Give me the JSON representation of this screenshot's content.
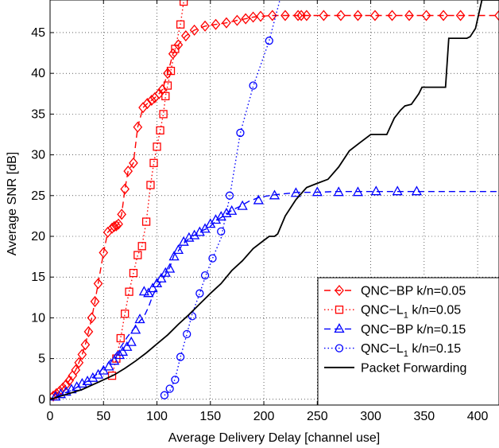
{
  "chart_data": {
    "type": "line",
    "title": "",
    "xlabel": "Average Delivery Delay [channel use]",
    "ylabel": "Average SNR [dB]",
    "xlim": [
      0,
      420
    ],
    "ylim": [
      -0.7,
      49
    ],
    "xticks": [
      0,
      50,
      100,
      150,
      200,
      250,
      300,
      350,
      400
    ],
    "yticks": [
      0,
      5,
      10,
      15,
      20,
      25,
      30,
      35,
      40,
      45
    ],
    "grid": true,
    "legend_position": "bottom-right",
    "series": [
      {
        "name": "QNC−BP k/n=0.05",
        "legend_main": "QNC−BP k/n=0.05",
        "legend_sub": "",
        "legend_tail": "",
        "color": "#ff0000",
        "line_style": "dashed",
        "marker": "diamond",
        "marker_every": 1,
        "x": [
          3,
          6,
          9,
          12,
          15,
          18,
          21,
          24,
          27,
          30,
          33,
          36,
          39,
          42,
          45,
          50,
          54,
          58,
          60,
          62,
          64,
          67,
          70,
          73,
          78,
          82,
          87,
          91,
          95,
          98,
          102,
          105,
          110,
          115,
          120,
          127,
          135,
          145,
          155,
          165,
          175,
          183,
          190,
          197,
          208,
          220,
          232,
          235,
          240,
          256,
          272,
          288,
          304,
          320,
          336,
          352,
          368,
          384,
          420
        ],
        "y": [
          0.4,
          0.7,
          1.0,
          1.4,
          1.8,
          2.3,
          2.9,
          3.6,
          4.5,
          5.5,
          6.7,
          8.3,
          10.0,
          12.0,
          14.2,
          18.0,
          20.5,
          21.0,
          21.2,
          21.3,
          21.5,
          22.7,
          25.8,
          28.0,
          29.0,
          33.4,
          35.8,
          36.3,
          36.7,
          37.0,
          37.5,
          38.0,
          40.0,
          42.4,
          43.5,
          44.6,
          45.3,
          45.8,
          46.0,
          46.2,
          46.5,
          46.7,
          46.9,
          47.0,
          47.1,
          47.1,
          47.1,
          47.1,
          47.1,
          47.1,
          47.1,
          47.1,
          47.1,
          47.1,
          47.1,
          47.1,
          47.1,
          47.1,
          47.1
        ]
      },
      {
        "name": "QNC−L1 k/n=0.05",
        "legend_main": "QNC−L",
        "legend_sub": "1",
        "legend_tail": " k/n=0.05",
        "color": "#ff0000",
        "line_style": "dotted",
        "marker": "square",
        "marker_every": 1,
        "x": [
          58,
          62,
          66,
          70,
          74,
          78,
          82,
          86,
          90,
          94,
          97,
          100,
          103,
          106,
          108,
          110,
          113,
          117,
          122,
          125
        ],
        "y": [
          2.9,
          5.0,
          7.5,
          10.5,
          13.2,
          15.5,
          17.7,
          18.8,
          21.8,
          26.3,
          29.0,
          31.0,
          33.0,
          35.0,
          37.2,
          38.5,
          40.3,
          43.0,
          46.0,
          48.8
        ]
      },
      {
        "name": "QNC−BP k/n=0.15",
        "legend_main": "QNC−BP k/n=0.15",
        "legend_sub": "",
        "legend_tail": "",
        "color": "#0000ff",
        "line_style": "dashed",
        "marker": "triangle",
        "marker_every": 1,
        "x": [
          5,
          8,
          12,
          16,
          20,
          24,
          28,
          32,
          36,
          40,
          44,
          48,
          52,
          56,
          60,
          64,
          68,
          72,
          76,
          80,
          84,
          88,
          92,
          96,
          100,
          104,
          108,
          112,
          116,
          120,
          124,
          128,
          132,
          136,
          140,
          144,
          148,
          152,
          156,
          160,
          165,
          170,
          178,
          186,
          196,
          210,
          225,
          230,
          236,
          250,
          266,
          280,
          288,
          304,
          320,
          336,
          343,
          420
        ],
        "y": [
          0.3,
          0.5,
          0.7,
          0.9,
          1.1,
          1.4,
          1.7,
          2.0,
          2.3,
          2.7,
          3.1,
          3.6,
          4.1,
          4.7,
          5.3,
          6.0,
          6.8,
          7.6,
          8.3,
          8.9,
          9.6,
          10.2,
          11.3,
          12.7,
          13.8,
          14.5,
          15.3,
          16.2,
          17.7,
          18.2,
          19.0,
          19.5,
          20.0,
          20.2,
          20.5,
          20.8,
          21.0,
          21.5,
          22.0,
          22.3,
          22.7,
          23.2,
          23.7,
          24.3,
          24.8,
          25.1,
          25.3,
          25.4,
          25.4,
          25.4,
          25.5,
          25.5,
          25.5,
          25.5,
          25.5,
          25.5,
          25.5,
          25.5
        ],
        "marker_x": [
          5,
          10,
          15,
          20,
          25,
          30,
          35,
          40,
          45,
          50,
          55,
          60,
          65,
          68,
          72,
          76,
          80,
          84,
          88,
          92,
          96,
          100,
          104,
          108,
          112,
          116,
          120,
          125,
          130,
          135,
          140,
          145,
          150,
          155,
          160,
          165,
          170,
          180,
          195,
          210,
          230,
          250,
          270,
          288,
          305,
          325,
          343
        ],
        "marker_y": [
          0.3,
          0.6,
          0.9,
          1.2,
          1.5,
          1.9,
          2.2,
          2.6,
          3.0,
          3.5,
          4.0,
          4.7,
          5.4,
          5.8,
          6.4,
          7.0,
          8.5,
          9.8,
          13.2,
          13.0,
          13.6,
          14.2,
          14.8,
          15.5,
          16.0,
          17.5,
          18.3,
          19.3,
          19.8,
          20.1,
          20.5,
          20.9,
          21.5,
          22.0,
          22.4,
          22.8,
          23.1,
          23.7,
          24.4,
          25.0,
          25.3,
          25.4,
          25.4,
          25.4,
          25.5,
          25.5,
          25.5
        ]
      },
      {
        "name": "QNC−L1 k/n=0.15",
        "legend_main": "QNC−L",
        "legend_sub": "1",
        "legend_tail": " k/n=0.15",
        "color": "#0000ff",
        "line_style": "dotted",
        "marker": "circle",
        "marker_every": 1,
        "x": [
          107,
          112,
          117,
          122,
          128,
          133,
          140,
          146,
          152,
          160,
          168,
          178,
          190,
          205,
          215
        ],
        "y": [
          0.5,
          1.0,
          2.5,
          5.2,
          8.0,
          10.5,
          13.0,
          15.3,
          17.3,
          19.8,
          24.8,
          32.7,
          38.4,
          44.0,
          49.0
        ],
        "marker_x": [
          107,
          112,
          117,
          122,
          128,
          133,
          140,
          145,
          152,
          160,
          168,
          178,
          190,
          205
        ],
        "marker_y": [
          0.5,
          1.3,
          2.4,
          5.2,
          8.0,
          10.2,
          13.0,
          15.2,
          17.3,
          20.6,
          25.0,
          32.7,
          38.5,
          44.0
        ]
      },
      {
        "name": "Packet Forwarding",
        "legend_main": "Packet Forwarding",
        "legend_sub": "",
        "legend_tail": "",
        "color": "#000000",
        "line_style": "solid",
        "marker": "none",
        "x": [
          0,
          10,
          20,
          30,
          40,
          50,
          60,
          70,
          80,
          90,
          100,
          110,
          120,
          130,
          140,
          150,
          160,
          170,
          180,
          190,
          200,
          205,
          210,
          213,
          220,
          230,
          240,
          250,
          260,
          270,
          280,
          290,
          300,
          310,
          315,
          322,
          328,
          332,
          338,
          345,
          348,
          352,
          356,
          362,
          368,
          370,
          373,
          390,
          393,
          398,
          404,
          420
        ],
        "y": [
          0,
          0.4,
          0.8,
          1.2,
          1.8,
          2.4,
          3.0,
          3.8,
          4.7,
          5.7,
          6.8,
          7.9,
          9.2,
          10.4,
          11.7,
          13.0,
          14.2,
          15.8,
          17.0,
          18.5,
          19.5,
          20.0,
          20.0,
          20.3,
          22.5,
          24.5,
          26.0,
          26.5,
          27.0,
          28.5,
          30.5,
          31.5,
          32.5,
          32.5,
          32.5,
          34.5,
          35.5,
          36.0,
          36.2,
          37.5,
          38.3,
          38.3,
          38.3,
          38.3,
          38.3,
          38.3,
          44.3,
          44.3,
          44.5,
          45.5,
          49.0,
          49.0
        ]
      }
    ]
  }
}
